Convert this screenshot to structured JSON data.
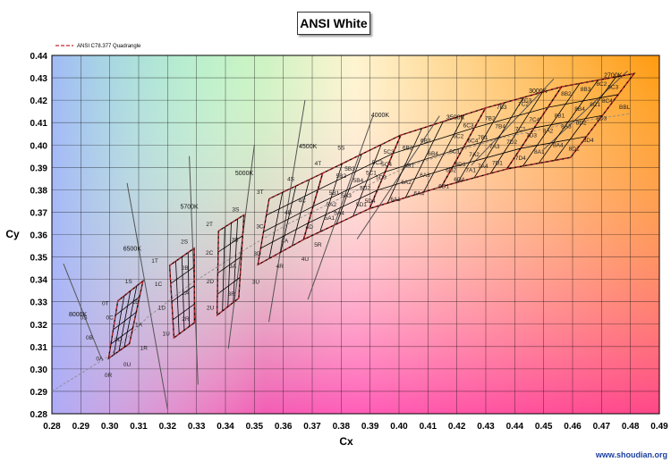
{
  "chart_data": {
    "type": "scatter",
    "title": "ANSI White",
    "xlabel": "Cx",
    "ylabel": "Cy",
    "xlim": [
      0.28,
      0.49
    ],
    "ylim": [
      0.28,
      0.44
    ],
    "x_ticks": [
      "0.28",
      "0.29",
      "0.30",
      "0.31",
      "0.32",
      "0.33",
      "0.34",
      "0.35",
      "0.36",
      "0.37",
      "0.38",
      "0.39",
      "0.40",
      "0.41",
      "0.42",
      "0.43",
      "0.44",
      "0.45",
      "0.46",
      "0.47",
      "0.48",
      "0.49"
    ],
    "y_ticks": [
      "0.28",
      "0.29",
      "0.30",
      "0.31",
      "0.32",
      "0.33",
      "0.34",
      "0.35",
      "0.36",
      "0.37",
      "0.38",
      "0.39",
      "0.40",
      "0.41",
      "0.42",
      "0.43",
      "0.44"
    ],
    "grid": true,
    "legend": {
      "position": "top-left",
      "entries": [
        "ANSI C78.377 Quadrangle"
      ]
    },
    "colors": {
      "quadrangle": "#c0282e",
      "grid": "#000000",
      "bins": "#000000",
      "isotherm": "#555555",
      "bbl": "#888888"
    },
    "bbl_label": "BBL",
    "cct_labels": [
      {
        "text": "8000K",
        "x": 0.289,
        "y": 0.3235
      },
      {
        "text": "6500K",
        "x": 0.3078,
        "y": 0.3528
      },
      {
        "text": "5700K",
        "x": 0.3275,
        "y": 0.3715
      },
      {
        "text": "5000K",
        "x": 0.3465,
        "y": 0.3865
      },
      {
        "text": "4500K",
        "x": 0.3685,
        "y": 0.3985
      },
      {
        "text": "4000K",
        "x": 0.3935,
        "y": 0.4125
      },
      {
        "text": "3500K",
        "x": 0.4195,
        "y": 0.4115
      },
      {
        "text": "3000K",
        "x": 0.448,
        "y": 0.4233
      },
      {
        "text": "2700K",
        "x": 0.474,
        "y": 0.4303
      }
    ],
    "isotherms": [
      {
        "x1": 0.284,
        "y1": 0.347,
        "x2": 0.297,
        "y2": 0.305
      },
      {
        "x1": 0.306,
        "y1": 0.383,
        "x2": 0.32,
        "y2": 0.282
      },
      {
        "x1": 0.3275,
        "y1": 0.395,
        "x2": 0.3305,
        "y2": 0.293
      },
      {
        "x1": 0.35,
        "y1": 0.4,
        "x2": 0.341,
        "y2": 0.309
      },
      {
        "x1": 0.3675,
        "y1": 0.42,
        "x2": 0.355,
        "y2": 0.321
      },
      {
        "x1": 0.391,
        "y1": 0.413,
        "x2": 0.3685,
        "y2": 0.331
      },
      {
        "x1": 0.414,
        "y1": 0.413,
        "x2": 0.3855,
        "y2": 0.358
      },
      {
        "x1": 0.4535,
        "y1": 0.4295,
        "x2": 0.425,
        "y2": 0.391
      },
      {
        "x1": 0.479,
        "y1": 0.433,
        "x2": 0.45,
        "y2": 0.398
      }
    ],
    "bbl": [
      [
        0.28,
        0.29
      ],
      [
        0.29,
        0.298
      ],
      [
        0.3,
        0.306
      ],
      [
        0.313,
        0.323
      ],
      [
        0.328,
        0.338
      ],
      [
        0.345,
        0.352
      ],
      [
        0.362,
        0.365
      ],
      [
        0.381,
        0.377
      ],
      [
        0.404,
        0.391
      ],
      [
        0.435,
        0.403
      ],
      [
        0.46,
        0.41
      ],
      [
        0.48,
        0.414
      ]
    ],
    "quadrangles": [
      [
        [
          0.3028,
          0.3304
        ],
        [
          0.3115,
          0.3393
        ],
        [
          0.3068,
          0.3113
        ],
        [
          0.2996,
          0.3047
        ]
      ],
      [
        [
          0.3207,
          0.3462
        ],
        [
          0.3292,
          0.3539
        ],
        [
          0.3293,
          0.3207
        ],
        [
          0.3222,
          0.3139
        ]
      ],
      [
        [
          0.3376,
          0.3616
        ],
        [
          0.3464,
          0.3688
        ],
        [
          0.3446,
          0.3316
        ],
        [
          0.3371,
          0.324
        ]
      ],
      [
        [
          0.3551,
          0.376
        ],
        [
          0.3736,
          0.3874
        ],
        [
          0.367,
          0.3578
        ],
        [
          0.3512,
          0.3465
        ]
      ],
      [
        [
          0.3736,
          0.3874
        ],
        [
          0.4006,
          0.4044
        ],
        [
          0.3898,
          0.3716
        ],
        [
          0.367,
          0.3578
        ]
      ],
      [
        [
          0.4006,
          0.4044
        ],
        [
          0.4299,
          0.4165
        ],
        [
          0.4147,
          0.3814
        ],
        [
          0.3898,
          0.3716
        ]
      ],
      [
        [
          0.4299,
          0.4165
        ],
        [
          0.4562,
          0.426
        ],
        [
          0.4373,
          0.3893
        ],
        [
          0.4147,
          0.3814
        ]
      ],
      [
        [
          0.4562,
          0.426
        ],
        [
          0.4813,
          0.4319
        ],
        [
          0.4593,
          0.3944
        ],
        [
          0.4373,
          0.3893
        ]
      ]
    ],
    "bins": [
      {
        "label": "0S",
        "x": 0.291,
        "y": 0.322
      },
      {
        "label": "0T",
        "x": 0.2985,
        "y": 0.3285
      },
      {
        "label": "0B",
        "x": 0.293,
        "y": 0.3132
      },
      {
        "label": "0C",
        "x": 0.3,
        "y": 0.322
      },
      {
        "label": "0A",
        "x": 0.2965,
        "y": 0.3038
      },
      {
        "label": "0D",
        "x": 0.303,
        "y": 0.3124
      },
      {
        "label": "0R",
        "x": 0.2995,
        "y": 0.2963
      },
      {
        "label": "0U",
        "x": 0.306,
        "y": 0.3012
      },
      {
        "label": "1S",
        "x": 0.3065,
        "y": 0.3382
      },
      {
        "label": "1T",
        "x": 0.3156,
        "y": 0.3474
      },
      {
        "label": "1B",
        "x": 0.3089,
        "y": 0.329
      },
      {
        "label": "1C",
        "x": 0.3168,
        "y": 0.337
      },
      {
        "label": "1A",
        "x": 0.31,
        "y": 0.319
      },
      {
        "label": "1D",
        "x": 0.318,
        "y": 0.3264
      },
      {
        "label": "1R",
        "x": 0.3118,
        "y": 0.3086
      },
      {
        "label": "1U",
        "x": 0.3195,
        "y": 0.315
      },
      {
        "label": "2S",
        "x": 0.3258,
        "y": 0.356
      },
      {
        "label": "2T",
        "x": 0.3345,
        "y": 0.3638
      },
      {
        "label": "2B",
        "x": 0.326,
        "y": 0.3442
      },
      {
        "label": "2C",
        "x": 0.3345,
        "y": 0.351
      },
      {
        "label": "2A",
        "x": 0.3262,
        "y": 0.333
      },
      {
        "label": "2D",
        "x": 0.3347,
        "y": 0.3382
      },
      {
        "label": "2R",
        "x": 0.3262,
        "y": 0.3215
      },
      {
        "label": "2U",
        "x": 0.3348,
        "y": 0.3265
      },
      {
        "label": "3S",
        "x": 0.3435,
        "y": 0.3704
      },
      {
        "label": "3T",
        "x": 0.352,
        "y": 0.3782
      },
      {
        "label": "3B",
        "x": 0.3433,
        "y": 0.3568
      },
      {
        "label": "3C",
        "x": 0.3519,
        "y": 0.3628
      },
      {
        "label": "3A",
        "x": 0.3425,
        "y": 0.345
      },
      {
        "label": "3D",
        "x": 0.351,
        "y": 0.3506
      },
      {
        "label": "3R",
        "x": 0.3421,
        "y": 0.3327
      },
      {
        "label": "3U",
        "x": 0.3505,
        "y": 0.338
      },
      {
        "label": "4S",
        "x": 0.3626,
        "y": 0.384
      },
      {
        "label": "4T",
        "x": 0.372,
        "y": 0.391
      },
      {
        "label": "4C",
        "x": 0.3665,
        "y": 0.3743
      },
      {
        "label": "4B",
        "x": 0.3617,
        "y": 0.369
      },
      {
        "label": "4A",
        "x": 0.3605,
        "y": 0.3565
      },
      {
        "label": "4D",
        "x": 0.369,
        "y": 0.3625
      },
      {
        "label": "4R",
        "x": 0.3588,
        "y": 0.345
      },
      {
        "label": "4U",
        "x": 0.3675,
        "y": 0.3483
      },
      {
        "label": "5S",
        "x": 0.38,
        "y": 0.398
      },
      {
        "label": "5R",
        "x": 0.372,
        "y": 0.3546
      },
      {
        "label": "5B2",
        "x": 0.38,
        "y": 0.3853
      },
      {
        "label": "5B3",
        "x": 0.383,
        "y": 0.3885
      },
      {
        "label": "5C2",
        "x": 0.3925,
        "y": 0.3913
      },
      {
        "label": "5C3",
        "x": 0.3965,
        "y": 0.3962
      },
      {
        "label": "5B1",
        "x": 0.3776,
        "y": 0.3778
      },
      {
        "label": "5B4",
        "x": 0.3859,
        "y": 0.3833
      },
      {
        "label": "5C1",
        "x": 0.3904,
        "y": 0.3867
      },
      {
        "label": "5C4",
        "x": 0.3957,
        "y": 0.3905
      },
      {
        "label": "5A2",
        "x": 0.3766,
        "y": 0.3726
      },
      {
        "label": "5A3",
        "x": 0.3818,
        "y": 0.3766
      },
      {
        "label": "5D2",
        "x": 0.3883,
        "y": 0.38
      },
      {
        "label": "5D3",
        "x": 0.3938,
        "y": 0.3848
      },
      {
        "label": "5A1",
        "x": 0.376,
        "y": 0.3665
      },
      {
        "label": "5A4",
        "x": 0.3793,
        "y": 0.3687
      },
      {
        "label": "5D1",
        "x": 0.387,
        "y": 0.3725
      },
      {
        "label": "5D4",
        "x": 0.39,
        "y": 0.3742
      },
      {
        "label": "6B2",
        "x": 0.403,
        "y": 0.398
      },
      {
        "label": "6B3",
        "x": 0.4092,
        "y": 0.401
      },
      {
        "label": "6C2",
        "x": 0.4205,
        "y": 0.403
      },
      {
        "label": "6C3",
        "x": 0.424,
        "y": 0.4078
      },
      {
        "label": "6B1",
        "x": 0.4035,
        "y": 0.39
      },
      {
        "label": "6B4",
        "x": 0.4118,
        "y": 0.3953
      },
      {
        "label": "6C1",
        "x": 0.4192,
        "y": 0.3963
      },
      {
        "label": "6C4",
        "x": 0.4255,
        "y": 0.401
      },
      {
        "label": "6A2",
        "x": 0.4025,
        "y": 0.3825
      },
      {
        "label": "6A3",
        "x": 0.409,
        "y": 0.3858
      },
      {
        "label": "6D2",
        "x": 0.418,
        "y": 0.388
      },
      {
        "label": "6D3",
        "x": 0.4212,
        "y": 0.3905
      },
      {
        "label": "6A1",
        "x": 0.3988,
        "y": 0.3749
      },
      {
        "label": "6A4",
        "x": 0.4069,
        "y": 0.3775
      },
      {
        "label": "6D1",
        "x": 0.4155,
        "y": 0.3808
      },
      {
        "label": "6D4",
        "x": 0.4208,
        "y": 0.3837
      },
      {
        "label": "7B2",
        "x": 0.4315,
        "y": 0.411
      },
      {
        "label": "7B3",
        "x": 0.4355,
        "y": 0.416
      },
      {
        "label": "7C2",
        "x": 0.443,
        "y": 0.4175
      },
      {
        "label": "7C3",
        "x": 0.444,
        "y": 0.419
      },
      {
        "label": "7B1",
        "x": 0.429,
        "y": 0.4025
      },
      {
        "label": "7B4",
        "x": 0.435,
        "y": 0.4075
      },
      {
        "label": "7C1",
        "x": 0.442,
        "y": 0.4063
      },
      {
        "label": "7C4",
        "x": 0.4468,
        "y": 0.4105
      },
      {
        "label": "7A2",
        "x": 0.426,
        "y": 0.395
      },
      {
        "label": "7A3",
        "x": 0.433,
        "y": 0.3985
      },
      {
        "label": "7D2",
        "x": 0.439,
        "y": 0.4005
      },
      {
        "label": "7D3",
        "x": 0.4458,
        "y": 0.4035
      },
      {
        "label": "7A1",
        "x": 0.4248,
        "y": 0.388
      },
      {
        "label": "7A4",
        "x": 0.429,
        "y": 0.3898
      },
      {
        "label": "7D1",
        "x": 0.434,
        "y": 0.3912
      },
      {
        "label": "7D4",
        "x": 0.442,
        "y": 0.3934
      },
      {
        "label": "8B2",
        "x": 0.4578,
        "y": 0.422
      },
      {
        "label": "8B3",
        "x": 0.4645,
        "y": 0.424
      },
      {
        "label": "8C2",
        "x": 0.47,
        "y": 0.4265
      },
      {
        "label": "8C3",
        "x": 0.474,
        "y": 0.425
      },
      {
        "label": "8B1",
        "x": 0.4555,
        "y": 0.4122
      },
      {
        "label": "8B4",
        "x": 0.4625,
        "y": 0.4152
      },
      {
        "label": "8C1",
        "x": 0.4678,
        "y": 0.4173
      },
      {
        "label": "8C4",
        "x": 0.472,
        "y": 0.4188
      },
      {
        "label": "8A2",
        "x": 0.4515,
        "y": 0.4055
      },
      {
        "label": "8A3",
        "x": 0.4578,
        "y": 0.4075
      },
      {
        "label": "8D2",
        "x": 0.463,
        "y": 0.409
      },
      {
        "label": "8D3",
        "x": 0.47,
        "y": 0.411
      },
      {
        "label": "8A1",
        "x": 0.4485,
        "y": 0.3962
      },
      {
        "label": "8A4",
        "x": 0.455,
        "y": 0.3992
      },
      {
        "label": "8D1",
        "x": 0.4605,
        "y": 0.3975
      },
      {
        "label": "8D4",
        "x": 0.4655,
        "y": 0.4012
      }
    ]
  },
  "watermark": "www.shoudian.org"
}
